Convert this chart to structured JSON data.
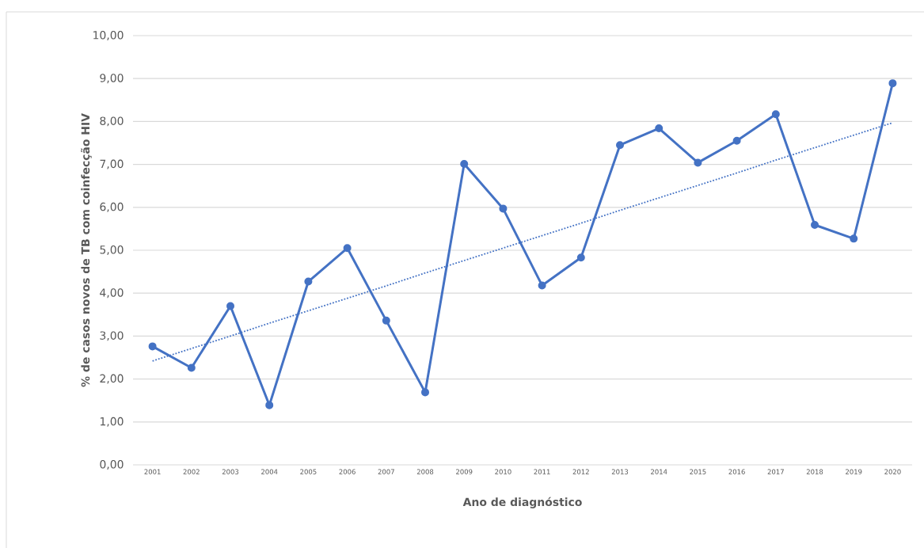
{
  "chart_data": {
    "type": "line",
    "xlabel": "Ano de diagnóstico",
    "ylabel": "% de casos novos de TB com coinfecção HIV",
    "categories": [
      "2001",
      "2002",
      "2003",
      "2004",
      "2005",
      "2006",
      "2007",
      "2008",
      "2009",
      "2010",
      "2011",
      "2012",
      "2013",
      "2014",
      "2015",
      "2016",
      "2017",
      "2018",
      "2019",
      "2020"
    ],
    "series": [
      {
        "color": "#4472c4",
        "values": [
          2.76,
          2.26,
          3.7,
          1.39,
          4.27,
          5.05,
          3.36,
          1.69,
          7.01,
          5.97,
          4.18,
          4.83,
          7.45,
          7.84,
          7.04,
          7.55,
          8.17,
          5.59,
          5.27,
          8.89
        ]
      },
      {
        "type": "line",
        "values": [
          2.42,
          2.71,
          3.0,
          3.3,
          3.59,
          3.88,
          4.17,
          4.47,
          4.76,
          5.05,
          5.34,
          5.63,
          5.93,
          6.22,
          6.51,
          6.8,
          7.1,
          7.39,
          7.68,
          7.97
        ],
        "color": "#4472c4",
        "line_style": "dotted",
        "marker": "none"
      }
    ],
    "ylim": [
      0,
      10
    ],
    "yticks": [
      {
        "value": 0,
        "label": "0,00"
      },
      {
        "value": 1,
        "label": "1,00"
      },
      {
        "value": 2,
        "label": "2,00"
      },
      {
        "value": 3,
        "label": "3,00"
      },
      {
        "value": 4,
        "label": "4,00"
      },
      {
        "value": 5,
        "label": "5,00"
      },
      {
        "value": 6,
        "label": "6,00"
      },
      {
        "value": 7,
        "label": "7,00"
      },
      {
        "value": 8,
        "label": "8,00"
      },
      {
        "value": 9,
        "label": "9,00"
      },
      {
        "value": 10,
        "label": "10,00"
      }
    ],
    "grid": "y",
    "marker": "circle",
    "line_style": "solid"
  }
}
